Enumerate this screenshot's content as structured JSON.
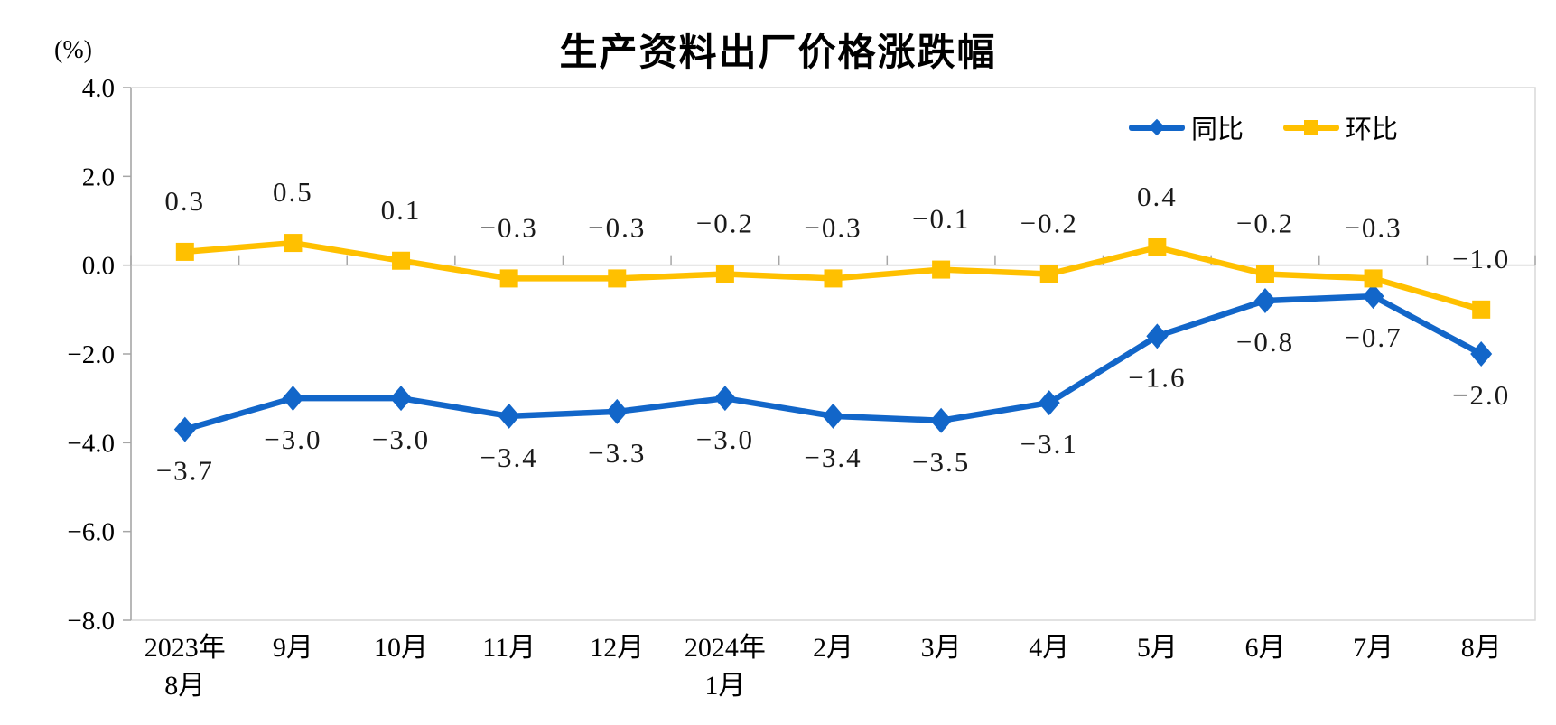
{
  "chart_data": {
    "type": "line",
    "title": "生产资料出厂价格涨跌幅",
    "ylabel": "(%)",
    "xlabel": "",
    "ylim": [
      -8.0,
      4.0
    ],
    "ytick_step": 2.0,
    "yticks": [
      "4.0",
      "2.0",
      "0.0",
      "-2.0",
      "-4.0",
      "-6.0",
      "-8.0"
    ],
    "grid": "zero-line-only",
    "legend_position": "top-right",
    "categories": [
      "2023年8月",
      "9月",
      "10月",
      "11月",
      "12月",
      "2024年1月",
      "2月",
      "3月",
      "4月",
      "5月",
      "6月",
      "7月",
      "8月"
    ],
    "category_display": [
      [
        "2023年",
        "8月"
      ],
      [
        "9月"
      ],
      [
        "10月"
      ],
      [
        "11月"
      ],
      [
        "12月"
      ],
      [
        "2024年",
        "1月"
      ],
      [
        "2月"
      ],
      [
        "3月"
      ],
      [
        "4月"
      ],
      [
        "5月"
      ],
      [
        "6月"
      ],
      [
        "7月"
      ],
      [
        "8月"
      ]
    ],
    "series": [
      {
        "name": "同比",
        "key": "yoy",
        "color": "#1266C9",
        "marker": "diamond",
        "label_position": "below",
        "values": [
          -3.7,
          -3.0,
          -3.0,
          -3.4,
          -3.3,
          -3.0,
          -3.4,
          -3.5,
          -3.1,
          -1.6,
          -0.8,
          -0.7,
          -2.0
        ]
      },
      {
        "name": "环比",
        "key": "mom",
        "color": "#FFC000",
        "marker": "square",
        "label_position": "above",
        "values": [
          0.3,
          0.5,
          0.1,
          -0.3,
          -0.3,
          -0.2,
          -0.3,
          -0.1,
          -0.2,
          0.4,
          -0.2,
          -0.3,
          -1.0
        ]
      }
    ],
    "colors": {
      "plot_border": "#D9D9D9",
      "axis_line": "#A6A6A6",
      "zero_line": "#BFBFBF",
      "tick": "#A6A6A6",
      "axis_text": "#000000",
      "data_label_text": "#1A1A1A"
    }
  }
}
